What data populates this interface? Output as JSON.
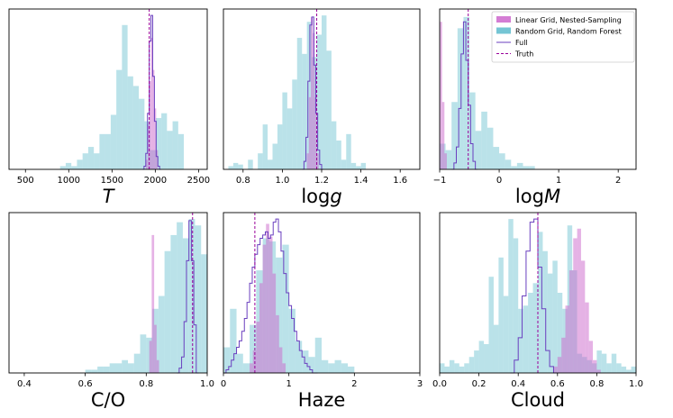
{
  "colors": {
    "linear": "#cc66cc",
    "random": "#66bfcf",
    "full": "#6a3fbf",
    "truth": "#990099"
  },
  "legend": {
    "linear_label": "Linear Grid, Nested-Sampling",
    "random_label": "Random Grid, Random Forest",
    "full_label": "Full",
    "truth_label": "Truth"
  },
  "chart_data": [
    {
      "id": "T",
      "type": "histogram",
      "xlabel_main": "T",
      "xlabel_sub": "",
      "xlabel_italic": true,
      "xlim": [
        310,
        2600
      ],
      "ticks": [
        500,
        1000,
        1500,
        2000,
        2500
      ],
      "tick_labels": [
        "500",
        "1000",
        "1500",
        "2000",
        "2500"
      ],
      "truth": 1930,
      "random_hist": {
        "start": 900,
        "width": 65,
        "heights": [
          0.02,
          0.04,
          0.02,
          0.06,
          0.1,
          0.14,
          0.1,
          0.22,
          0.22,
          0.34,
          0.62,
          0.9,
          0.58,
          0.52,
          0.44,
          0.3,
          0.12,
          0.32,
          0.35,
          0.24,
          0.3,
          0.22
        ]
      },
      "linear_hist": {
        "start": 1890,
        "width": 20,
        "heights": [
          0.06,
          0.28,
          0.55,
          0.82,
          0.62,
          0.38,
          0.12
        ]
      },
      "full_line": {
        "start": 1850,
        "width": 20,
        "heights": [
          0,
          0.02,
          0.1,
          0.35,
          0.8,
          0.96,
          0.58,
          0.3,
          0.08,
          0.02,
          0
        ]
      }
    },
    {
      "id": "logg",
      "type": "histogram",
      "xlabel_main": "log",
      "xlabel_sub": "g",
      "xlabel_italic": false,
      "xlim": [
        0.7,
        1.7
      ],
      "ticks": [
        0.8,
        1.0,
        1.2,
        1.4,
        1.6
      ],
      "tick_labels": [
        "0.8",
        "1.0",
        "1.2",
        "1.4",
        "1.6"
      ],
      "truth": 1.175,
      "random_hist": {
        "start": 0.7,
        "width": 0.025,
        "heights": [
          0,
          0.02,
          0.04,
          0.03,
          0,
          0.06,
          0,
          0.1,
          0.28,
          0.06,
          0.16,
          0.28,
          0.48,
          0.38,
          0.56,
          0.82,
          0.72,
          0.92,
          0.7,
          0.84,
          0.96,
          0.74,
          0.3,
          0.18,
          0.06,
          0.22,
          0.04,
          0.02,
          0.04,
          0,
          0,
          0,
          0,
          0,
          0,
          0,
          0,
          0,
          0,
          0
        ]
      },
      "linear_hist": {
        "start": 1.125,
        "width": 0.01,
        "heights": [
          0.1,
          0.45,
          0.95,
          0.85,
          0.45,
          0.1
        ]
      },
      "full_line": {
        "start": 1.1,
        "width": 0.01,
        "heights": [
          0,
          0.05,
          0.2,
          0.55,
          0.9,
          0.95,
          0.65,
          0.35,
          0.12,
          0.03,
          0
        ]
      }
    },
    {
      "id": "logM",
      "type": "histogram",
      "xlabel_main": "log",
      "xlabel_sub": "M",
      "xlabel_italic": false,
      "xlim": [
        -1.0,
        2.3
      ],
      "ticks": [
        -1,
        0,
        1,
        2
      ],
      "tick_labels": [
        "−1",
        "0",
        "1",
        "2"
      ],
      "truth": -0.52,
      "random_hist": {
        "start": -1.0,
        "width": 0.1,
        "heights": [
          0.16,
          0.12,
          0.42,
          0.88,
          0.95,
          0.48,
          0.24,
          0.36,
          0.26,
          0.14,
          0.1,
          0.06,
          0.02,
          0.04,
          0.02,
          0.02,
          0,
          0,
          0,
          0,
          0,
          0,
          0,
          0,
          0,
          0,
          0,
          0,
          0,
          0,
          0,
          0,
          0
        ]
      },
      "linear_hist": {
        "start": -1.0,
        "width": 0.04,
        "heights": [
          0.92,
          0.42,
          0.1
        ]
      },
      "full_line": {
        "start": -0.8,
        "width": 0.04,
        "heights": [
          0,
          0.04,
          0.14,
          0.38,
          0.72,
          0.92,
          0.68,
          0.4,
          0.16,
          0.05,
          0
        ]
      }
    },
    {
      "id": "CO",
      "type": "histogram",
      "xlabel_main": "C/O",
      "xlabel_sub": "",
      "xlabel_italic": false,
      "xlim": [
        0.35,
        1.0
      ],
      "ticks": [
        0.4,
        0.6,
        0.8,
        1.0
      ],
      "tick_labels": [
        "0.4",
        "0.6",
        "0.8",
        "1.0"
      ],
      "truth": 0.952,
      "random_hist": {
        "start": 0.6,
        "width": 0.02,
        "heights": [
          0.02,
          0.02,
          0.04,
          0.04,
          0.06,
          0.06,
          0.08,
          0.06,
          0.12,
          0.24,
          0.22,
          0.4,
          0.48,
          0.76,
          0.86,
          0.94,
          0.84,
          0.96,
          0.92,
          0.74
        ]
      },
      "linear_hist": {
        "start": 0.81,
        "width": 0.008,
        "heights": [
          0.2,
          0.86,
          0.3,
          0.08
        ]
      },
      "full_line": {
        "start": 0.9,
        "width": 0.008,
        "heights": [
          0,
          0.03,
          0.1,
          0.32,
          0.7,
          0.95,
          0.7,
          0.3,
          0
        ]
      }
    },
    {
      "id": "Haze",
      "type": "histogram",
      "xlabel_main": "Haze",
      "xlabel_sub": "",
      "xlabel_italic": false,
      "xlim": [
        0,
        3.0
      ],
      "ticks": [
        0,
        1,
        2,
        3
      ],
      "tick_labels": [
        "0",
        "1",
        "2",
        "3"
      ],
      "truth": 0.48,
      "random_hist": {
        "start": 0.0,
        "width": 0.1,
        "heights": [
          0.16,
          0.4,
          0.12,
          0.06,
          0.3,
          0.64,
          0.84,
          0.82,
          0.72,
          0.8,
          0.4,
          0.2,
          0.14,
          0.1,
          0.22,
          0.08,
          0.06,
          0.08,
          0.06,
          0.04,
          0,
          0,
          0,
          0,
          0,
          0,
          0,
          0,
          0,
          0
        ]
      },
      "linear_hist": {
        "start": 0.4,
        "width": 0.05,
        "heights": [
          0.06,
          0.14,
          0.32,
          0.56,
          0.8,
          0.93,
          0.85,
          0.62,
          0.36,
          0.16,
          0.06
        ]
      },
      "full_line": {
        "start": 0.0,
        "width": 0.04,
        "heights": [
          0,
          0.02,
          0.04,
          0.08,
          0.12,
          0.16,
          0.2,
          0.26,
          0.34,
          0.44,
          0.56,
          0.66,
          0.74,
          0.8,
          0.84,
          0.86,
          0.88,
          0.84,
          0.86,
          0.94,
          0.96,
          0.88,
          0.76,
          0.62,
          0.5,
          0.42,
          0.34,
          0.26,
          0.2,
          0.14,
          0.1,
          0.06,
          0.04,
          0.02,
          0,
          0
        ]
      }
    },
    {
      "id": "Cloud",
      "type": "histogram",
      "xlabel_main": "Cloud",
      "xlabel_sub": "",
      "xlabel_italic": false,
      "xlim": [
        0,
        1.0
      ],
      "ticks": [
        0,
        0.2,
        0.4,
        0.6,
        0.8,
        1.0
      ],
      "tick_labels": [
        "0.0",
        "0.2",
        "0.4",
        "0.6",
        "0.8",
        "1.0"
      ],
      "truth": 0.5,
      "random_hist": {
        "start": 0.0,
        "width": 0.025,
        "heights": [
          0.06,
          0.04,
          0.08,
          0.06,
          0.04,
          0.06,
          0.1,
          0.14,
          0.2,
          0.18,
          0.6,
          0.3,
          0.72,
          0.48,
          0.96,
          0.84,
          0.4,
          0.42,
          0.5,
          0.56,
          0.88,
          0.76,
          0.62,
          0.7,
          0.5,
          0.4,
          0.92,
          0.64,
          0.12,
          0.1,
          0.08,
          0.06,
          0.14,
          0.12,
          0.06,
          0.12,
          0.06,
          0.04,
          0.02,
          0.04
        ]
      },
      "linear_hist": {
        "start": 0.58,
        "width": 0.02,
        "heights": [
          0.04,
          0.1,
          0.22,
          0.42,
          0.64,
          0.84,
          0.9,
          0.7,
          0.44,
          0.2,
          0.08,
          0.02
        ]
      },
      "full_line": {
        "start": 0.36,
        "width": 0.02,
        "heights": [
          0,
          0.08,
          0.22,
          0.48,
          0.76,
          0.94,
          0.96,
          0.66,
          0.4,
          0.14,
          0.04,
          0
        ]
      }
    }
  ]
}
